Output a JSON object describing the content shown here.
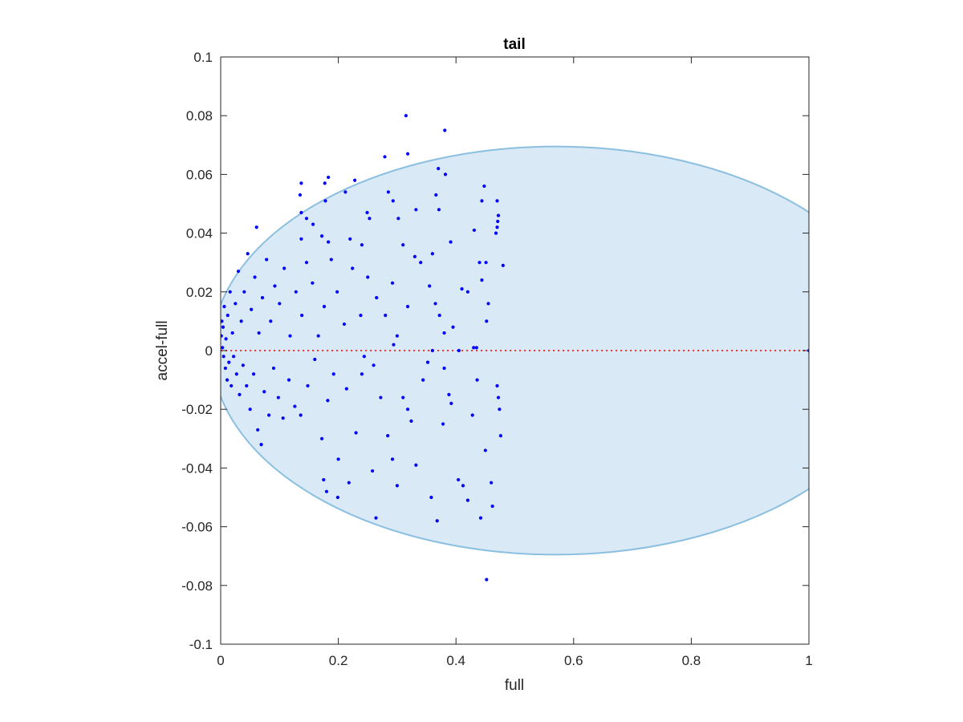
{
  "chart_data": {
    "type": "scatter",
    "title": "tail",
    "xlabel": "full",
    "ylabel": "accel-full",
    "xlim": [
      0,
      1
    ],
    "ylim": [
      -0.1,
      0.1
    ],
    "xticks": [
      0,
      0.2,
      0.4,
      0.6,
      0.8,
      1
    ],
    "xtick_labels": [
      "0",
      "0.2",
      "0.4",
      "0.6",
      "0.8",
      "1"
    ],
    "yticks": [
      -0.1,
      -0.08,
      -0.06,
      -0.04,
      -0.02,
      0,
      0.02,
      0.04,
      0.06,
      0.08,
      0.1
    ],
    "ytick_labels": [
      "-0.1",
      "-0.08",
      "-0.06",
      "-0.04",
      "-0.02",
      "0",
      "0.02",
      "0.04",
      "0.06",
      "0.08",
      "0.1"
    ],
    "grid": false,
    "colors": {
      "points": "#0000ff",
      "region_fill": "#d9e9f5",
      "region_edge": "#8bbfe0",
      "reference_line": "#ff3333",
      "axes": "#262626"
    },
    "region": {
      "shape": "ellipse",
      "center": [
        0.57,
        0
      ],
      "semi_axes": [
        0.585,
        0.0695
      ]
    },
    "reference_line": {
      "style": "dotted",
      "x": [
        0,
        1
      ],
      "y": [
        0,
        0
      ]
    },
    "series": [
      {
        "points": [
          [
            0.315,
            0.08
          ],
          [
            0.381,
            0.075
          ],
          [
            0.37,
            0.062
          ],
          [
            0.382,
            0.06
          ],
          [
            0.279,
            0.066
          ],
          [
            0.318,
            0.067
          ],
          [
            0.228,
            0.058
          ],
          [
            0.137,
            0.057
          ],
          [
            0.183,
            0.059
          ],
          [
            0.177,
            0.057
          ],
          [
            0.178,
            0.051
          ],
          [
            0.212,
            0.054
          ],
          [
            0.135,
            0.053
          ],
          [
            0.285,
            0.054
          ],
          [
            0.293,
            0.051
          ],
          [
            0.366,
            0.053
          ],
          [
            0.448,
            0.056
          ],
          [
            0.47,
            0.051
          ],
          [
            0.444,
            0.051
          ],
          [
            0.137,
            0.047
          ],
          [
            0.146,
            0.045
          ],
          [
            0.157,
            0.043
          ],
          [
            0.249,
            0.047
          ],
          [
            0.253,
            0.045
          ],
          [
            0.302,
            0.045
          ],
          [
            0.332,
            0.048
          ],
          [
            0.371,
            0.048
          ],
          [
            0.431,
            0.041
          ],
          [
            0.472,
            0.046
          ],
          [
            0.471,
            0.044
          ],
          [
            0.47,
            0.042
          ],
          [
            0.468,
            0.04
          ],
          [
            0.061,
            0.042
          ],
          [
            0.137,
            0.038
          ],
          [
            0.172,
            0.039
          ],
          [
            0.183,
            0.037
          ],
          [
            0.22,
            0.038
          ],
          [
            0.24,
            0.036
          ],
          [
            0.31,
            0.036
          ],
          [
            0.33,
            0.032
          ],
          [
            0.36,
            0.033
          ],
          [
            0.391,
            0.037
          ],
          [
            0.451,
            0.03
          ],
          [
            0.48,
            0.029
          ],
          [
            0.44,
            0.03
          ],
          [
            0.444,
            0.024
          ],
          [
            0.455,
            0.016
          ],
          [
            0.452,
            0.01
          ],
          [
            0.43,
            0.001
          ],
          [
            0.435,
            0.001
          ],
          [
            0.42,
            0.02
          ],
          [
            0.41,
            0.021
          ],
          [
            0.395,
            0.008
          ],
          [
            0.38,
            0.006
          ],
          [
            0.372,
            0.012
          ],
          [
            0.365,
            0.016
          ],
          [
            0.355,
            0.022
          ],
          [
            0.34,
            0.03
          ],
          [
            0.318,
            0.015
          ],
          [
            0.3,
            0.005
          ],
          [
            0.292,
            0.023
          ],
          [
            0.28,
            0.012
          ],
          [
            0.265,
            0.018
          ],
          [
            0.25,
            0.025
          ],
          [
            0.238,
            0.012
          ],
          [
            0.224,
            0.028
          ],
          [
            0.21,
            0.009
          ],
          [
            0.198,
            0.02
          ],
          [
            0.188,
            0.031
          ],
          [
            0.176,
            0.015
          ],
          [
            0.166,
            0.005
          ],
          [
            0.156,
            0.023
          ],
          [
            0.146,
            0.03
          ],
          [
            0.138,
            0.012
          ],
          [
            0.128,
            0.02
          ],
          [
            0.118,
            0.005
          ],
          [
            0.108,
            0.028
          ],
          [
            0.1,
            0.016
          ],
          [
            0.092,
            0.022
          ],
          [
            0.085,
            0.01
          ],
          [
            0.078,
            0.031
          ],
          [
            0.071,
            0.018
          ],
          [
            0.065,
            0.006
          ],
          [
            0.058,
            0.025
          ],
          [
            0.052,
            0.014
          ],
          [
            0.046,
            0.033
          ],
          [
            0.04,
            0.02
          ],
          [
            0.035,
            0.01
          ],
          [
            0.03,
            0.027
          ],
          [
            0.025,
            0.016
          ],
          [
            0.02,
            0.006
          ],
          [
            0.016,
            0.02
          ],
          [
            0.012,
            0.012
          ],
          [
            0.009,
            0.004
          ],
          [
            0.006,
            0.015
          ],
          [
            0.004,
            0.008
          ],
          [
            0.003,
            0.001
          ],
          [
            0.002,
            0.01
          ],
          [
            0.001,
            0.005
          ],
          [
            0.005,
            -0.002
          ],
          [
            0.008,
            -0.006
          ],
          [
            0.011,
            -0.01
          ],
          [
            0.014,
            -0.004
          ],
          [
            0.018,
            -0.012
          ],
          [
            0.022,
            -0.002
          ],
          [
            0.027,
            -0.008
          ],
          [
            0.032,
            -0.015
          ],
          [
            0.038,
            -0.005
          ],
          [
            0.044,
            -0.012
          ],
          [
            0.05,
            -0.02
          ],
          [
            0.056,
            -0.008
          ],
          [
            0.063,
            -0.027
          ],
          [
            0.069,
            -0.032
          ],
          [
            0.074,
            -0.014
          ],
          [
            0.082,
            -0.022
          ],
          [
            0.09,
            -0.006
          ],
          [
            0.098,
            -0.016
          ],
          [
            0.106,
            -0.023
          ],
          [
            0.116,
            -0.01
          ],
          [
            0.126,
            -0.019
          ],
          [
            0.136,
            -0.022
          ],
          [
            0.148,
            -0.012
          ],
          [
            0.16,
            -0.003
          ],
          [
            0.172,
            -0.03
          ],
          [
            0.182,
            -0.017
          ],
          [
            0.192,
            -0.008
          ],
          [
            0.2,
            -0.037
          ],
          [
            0.214,
            -0.013
          ],
          [
            0.218,
            -0.045
          ],
          [
            0.23,
            -0.028
          ],
          [
            0.244,
            -0.002
          ],
          [
            0.258,
            -0.041
          ],
          [
            0.264,
            -0.057
          ],
          [
            0.272,
            -0.016
          ],
          [
            0.284,
            -0.029
          ],
          [
            0.292,
            -0.037
          ],
          [
            0.3,
            -0.046
          ],
          [
            0.31,
            -0.016
          ],
          [
            0.318,
            -0.02
          ],
          [
            0.324,
            -0.024
          ],
          [
            0.332,
            -0.039
          ],
          [
            0.344,
            -0.01
          ],
          [
            0.352,
            -0.004
          ],
          [
            0.358,
            -0.05
          ],
          [
            0.368,
            -0.058
          ],
          [
            0.38,
            -0.006
          ],
          [
            0.392,
            -0.018
          ],
          [
            0.404,
            -0.044
          ],
          [
            0.412,
            -0.046
          ],
          [
            0.42,
            -0.051
          ],
          [
            0.428,
            -0.022
          ],
          [
            0.436,
            -0.01
          ],
          [
            0.442,
            -0.057
          ],
          [
            0.45,
            -0.034
          ],
          [
            0.452,
            -0.078
          ],
          [
            0.46,
            -0.045
          ],
          [
            0.462,
            -0.053
          ],
          [
            0.47,
            -0.012
          ],
          [
            0.472,
            -0.016
          ],
          [
            0.474,
            -0.02
          ],
          [
            0.476,
            -0.029
          ],
          [
            0.199,
            -0.05
          ],
          [
            0.18,
            -0.048
          ],
          [
            0.175,
            -0.044
          ],
          [
            0.24,
            -0.008
          ],
          [
            0.26,
            -0.005
          ],
          [
            0.294,
            0.002
          ],
          [
            0.36,
            0.0
          ],
          [
            0.405,
            0.0
          ],
          [
            0.388,
            -0.015
          ],
          [
            0.378,
            -0.025
          ],
          [
            1.0,
            0.0
          ]
        ]
      }
    ]
  }
}
